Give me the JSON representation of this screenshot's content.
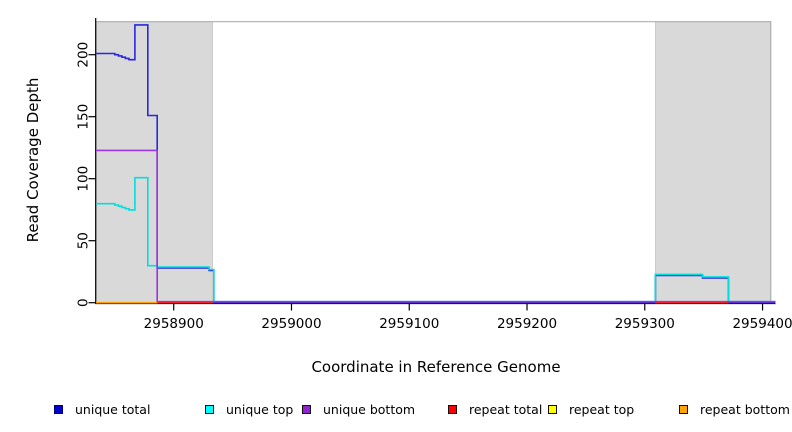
{
  "chart_data": {
    "type": "line",
    "step": true,
    "title": "",
    "xlabel": "Coordinate in Reference Genome",
    "ylabel": "Read Coverage Depth",
    "xlim": [
      2958834,
      2959411
    ],
    "ylim": [
      0,
      230
    ],
    "x_ticks": [
      2958900,
      2959000,
      2959100,
      2959200,
      2959300,
      2959400
    ],
    "y_ticks": [
      0,
      50,
      100,
      150,
      200
    ],
    "grid": false,
    "legend_position": "bottom",
    "background": "#ffffff",
    "frame": {
      "x0": 2958834,
      "x1": 2959407,
      "y_top": 226.6,
      "stroke": "#a8a8a8"
    },
    "shaded_regions": [
      {
        "label": "repeat region left",
        "x0": 2958834,
        "x1": 2958933,
        "fill": "#d9d9d9",
        "stroke": "#c9c9c9"
      },
      {
        "label": "repeat region right",
        "x0": 2959309,
        "x1": 2959407,
        "fill": "#d9d9d9",
        "stroke": "#c9c9c9"
      }
    ],
    "series": [
      {
        "name": "unique total",
        "color": "#2828dc",
        "legend_color": "#0000cc",
        "legend_border": "#000080",
        "dy": 0,
        "segments": [
          [
            [
              2958834,
              201
            ],
            [
              2958850,
              200
            ],
            [
              2958853,
              199
            ],
            [
              2958856,
              198
            ],
            [
              2958859,
              197
            ],
            [
              2958862,
              196
            ],
            [
              2958867,
              224
            ],
            [
              2958878,
              151
            ],
            [
              2958886,
              28
            ],
            [
              2958930,
              26
            ],
            [
              2958934,
              0
            ],
            [
              2959309,
              22
            ],
            [
              2959349,
              20
            ],
            [
              2959371,
              0
            ],
            [
              2959411,
              0
            ]
          ]
        ]
      },
      {
        "name": "unique top",
        "color": "#00dede",
        "legend_color": "#00ffff",
        "legend_border": "#111111",
        "dy": -1,
        "segments": [
          [
            [
              2958834,
              79
            ],
            [
              2958850,
              78
            ],
            [
              2958853,
              77
            ],
            [
              2958856,
              76
            ],
            [
              2958859,
              75
            ],
            [
              2958862,
              74
            ],
            [
              2958867,
              100
            ],
            [
              2958878,
              29
            ],
            [
              2958886,
              28
            ],
            [
              2958930,
              26
            ],
            [
              2958934,
              0
            ],
            [
              2959309,
              22
            ],
            [
              2959349,
              20
            ],
            [
              2959371,
              0
            ],
            [
              2959411,
              0
            ]
          ]
        ]
      },
      {
        "name": "unique bottom",
        "color": "#9c35db",
        "legend_color": "#9123cc",
        "legend_border": "#111111",
        "dy": -1,
        "segments": [
          [
            [
              2958834,
              122
            ],
            [
              2958886,
              0
            ],
            [
              2959411,
              0
            ]
          ]
        ]
      },
      {
        "name": "repeat total",
        "color": "#ee2033",
        "legend_color": "#ff0000",
        "legend_border": "#111111",
        "dy": 0,
        "segments": [
          [
            [
              2958886,
              0
            ],
            [
              2958933,
              0
            ]
          ],
          [
            [
              2959309,
              0
            ],
            [
              2959371,
              0
            ]
          ]
        ]
      },
      {
        "name": "repeat top",
        "color": "#ffff00",
        "legend_color": "#ffff00",
        "legend_border": "#111111",
        "dy": 0,
        "segments": []
      },
      {
        "name": "repeat bottom",
        "color": "#ffa200",
        "legend_color": "#ffa500",
        "legend_border": "#111111",
        "dy": 0,
        "segments": [
          [
            [
              2958834,
              0
            ],
            [
              2958886,
              0
            ]
          ]
        ]
      }
    ]
  }
}
